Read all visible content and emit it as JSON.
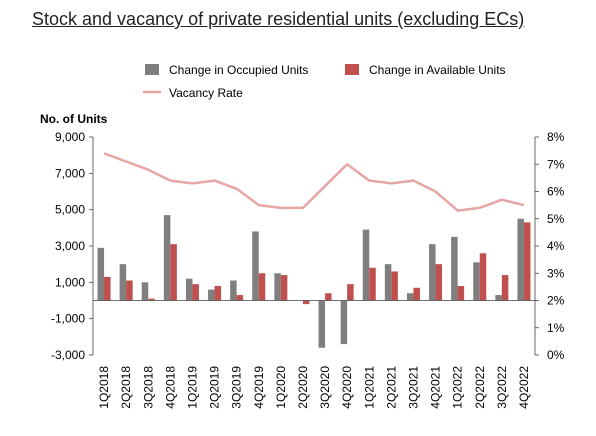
{
  "page": {
    "title": "Stock and vacancy of private residential units (excluding ECs)"
  },
  "chart_data": {
    "type": "bar",
    "ylabel_left": "No. of Units",
    "ylim_left": [
      -3000,
      9000
    ],
    "yticks_left": [
      9000,
      7000,
      5000,
      3000,
      1000,
      -1000,
      -3000
    ],
    "yticks_left_labels": [
      "9,000",
      "7,000",
      "5,000",
      "3,000",
      "1,000",
      "-1,000",
      "-3,000"
    ],
    "ylim_right": [
      0,
      8
    ],
    "yticks_right": [
      8,
      7,
      6,
      5,
      4,
      3,
      2,
      1,
      0
    ],
    "yticks_right_labels": [
      "8%",
      "7%",
      "6%",
      "5%",
      "4%",
      "3%",
      "2%",
      "1%",
      "0%"
    ],
    "categories": [
      "1Q2018",
      "2Q2018",
      "3Q2018",
      "4Q2018",
      "1Q2019",
      "2Q2019",
      "3Q2019",
      "4Q2019",
      "1Q2020",
      "2Q2020",
      "3Q2020",
      "4Q2020",
      "1Q2021",
      "2Q2021",
      "3Q2021",
      "4Q2021",
      "1Q2022",
      "2Q2022",
      "3Q2022",
      "4Q2022"
    ],
    "series": [
      {
        "name": "Change in Occupied Units",
        "kind": "bar",
        "axis": "left",
        "color": "#7f7f7f",
        "values": [
          2900,
          2000,
          1000,
          4700,
          1200,
          600,
          1100,
          3800,
          1500,
          0,
          -2600,
          -2400,
          3900,
          2000,
          400,
          3100,
          3500,
          2100,
          300,
          4500
        ]
      },
      {
        "name": "Change in Available Units",
        "kind": "bar",
        "axis": "left",
        "color": "#c0504d",
        "values": [
          1300,
          1100,
          100,
          3100,
          900,
          800,
          300,
          1500,
          1400,
          -200,
          400,
          900,
          1800,
          1600,
          700,
          2000,
          800,
          2600,
          1400,
          4300
        ]
      },
      {
        "name": "Vacancy Rate",
        "kind": "line",
        "axis": "right",
        "color": "#e6a6a4",
        "values": [
          7.4,
          7.1,
          6.8,
          6.4,
          6.3,
          6.4,
          6.1,
          5.5,
          5.4,
          5.4,
          6.2,
          7.0,
          6.4,
          6.3,
          6.4,
          6.0,
          5.3,
          5.4,
          5.7,
          5.5
        ]
      }
    ],
    "legend_position": "top"
  }
}
